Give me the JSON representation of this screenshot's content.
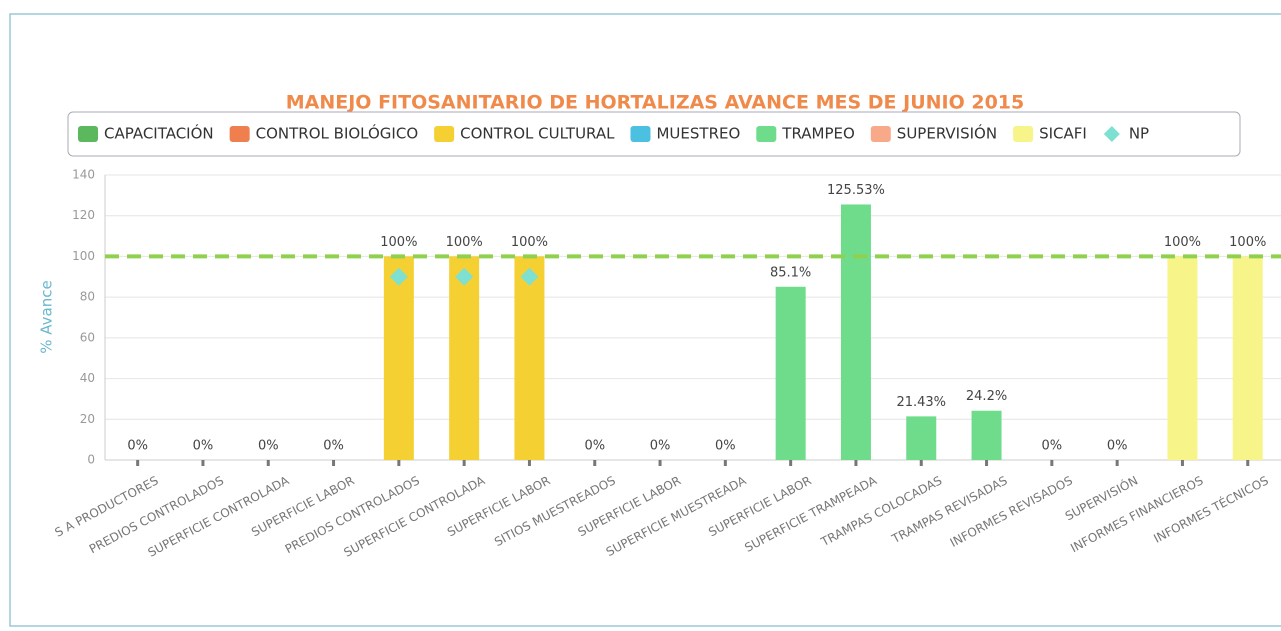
{
  "chart_data": {
    "type": "bar",
    "title": "MANEJO FITOSANITARIO DE HORTALIZAS AVANCE MES DE JUNIO 2015",
    "ylabel": "% Avance",
    "categories": [
      "S A PRODUCTORES",
      "PREDIOS CONTROLADOS",
      "SUPERFICIE CONTROLADA",
      "SUPERFICIE LABOR",
      "PREDIOS CONTROLADOS",
      "SUPERFICIE CONTROLADA",
      "SUPERFICIE LABOR",
      "SITIOS MUESTREADOS",
      "SUPERFICIE LABOR",
      "SUPERFICIE MUESTREADA",
      "SUPERFICIE LABOR",
      "SUPERFICIE TRAMPEADA",
      "TRAMPAS COLOCADAS",
      "TRAMPAS REVISADAS",
      "INFORMES REVISADOS",
      "SUPERVISIÓN",
      "INFORMES FINANCIEROS",
      "INFORMES TÉCNICOS"
    ],
    "series": [
      {
        "name": "CAPACITACIÓN",
        "color": "#5cb85c",
        "values": [
          0,
          null,
          null,
          null,
          null,
          null,
          null,
          null,
          null,
          null,
          null,
          null,
          null,
          null,
          null,
          null,
          null,
          null
        ],
        "value_labels": [
          "0%",
          null,
          null,
          null,
          null,
          null,
          null,
          null,
          null,
          null,
          null,
          null,
          null,
          null,
          null,
          null,
          null,
          null
        ]
      },
      {
        "name": "CONTROL BIOLÓGICO",
        "color": "#f07f50",
        "values": [
          null,
          0,
          0,
          0,
          null,
          null,
          null,
          null,
          null,
          null,
          null,
          null,
          null,
          null,
          null,
          null,
          null,
          null
        ],
        "value_labels": [
          null,
          "0%",
          "0%",
          "0%",
          null,
          null,
          null,
          null,
          null,
          null,
          null,
          null,
          null,
          null,
          null,
          null,
          null,
          null
        ]
      },
      {
        "name": "CONTROL CULTURAL",
        "color": "#f5d033",
        "values": [
          null,
          null,
          null,
          null,
          100,
          100,
          100,
          null,
          null,
          null,
          null,
          null,
          null,
          null,
          null,
          null,
          null,
          null
        ],
        "value_labels": [
          null,
          null,
          null,
          null,
          "100%",
          "100%",
          "100%",
          null,
          null,
          null,
          null,
          null,
          null,
          null,
          null,
          null,
          null,
          null
        ]
      },
      {
        "name": "MUESTREO",
        "color": "#4bc0e0",
        "values": [
          null,
          null,
          null,
          null,
          null,
          null,
          null,
          0,
          0,
          0,
          null,
          null,
          null,
          null,
          null,
          null,
          null,
          null
        ],
        "value_labels": [
          null,
          null,
          null,
          null,
          null,
          null,
          null,
          "0%",
          "0%",
          "0%",
          null,
          null,
          null,
          null,
          null,
          null,
          null,
          null
        ]
      },
      {
        "name": "TRAMPEO",
        "color": "#6fdc8c",
        "values": [
          null,
          null,
          null,
          null,
          null,
          null,
          null,
          null,
          null,
          null,
          85.1,
          125.53,
          21.43,
          24.2,
          null,
          null,
          null,
          null
        ],
        "value_labels": [
          null,
          null,
          null,
          null,
          null,
          null,
          null,
          null,
          null,
          null,
          "85.1%",
          "125.53%",
          "21.43%",
          "24.2%",
          null,
          null,
          null,
          null
        ]
      },
      {
        "name": "SUPERVISIÓN",
        "color": "#f7a98a",
        "values": [
          null,
          null,
          null,
          null,
          null,
          null,
          null,
          null,
          null,
          null,
          null,
          null,
          null,
          null,
          0,
          0,
          null,
          null
        ],
        "value_labels": [
          null,
          null,
          null,
          null,
          null,
          null,
          null,
          null,
          null,
          null,
          null,
          null,
          null,
          null,
          "0%",
          "0%",
          null,
          null
        ]
      },
      {
        "name": "SICAFI",
        "color": "#f7f58a",
        "values": [
          null,
          null,
          null,
          null,
          null,
          null,
          null,
          null,
          null,
          null,
          null,
          null,
          null,
          null,
          null,
          null,
          100,
          100
        ],
        "value_labels": [
          null,
          null,
          null,
          null,
          null,
          null,
          null,
          null,
          null,
          null,
          null,
          null,
          null,
          null,
          null,
          null,
          "100%",
          "100%"
        ]
      },
      {
        "name": "NP",
        "color": "#7ee0d0",
        "type": "scatter",
        "values": [
          null,
          null,
          null,
          null,
          90,
          90,
          90,
          null,
          null,
          null,
          null,
          null,
          null,
          null,
          null,
          null,
          null,
          null
        ]
      }
    ],
    "reference_line": {
      "value": 100,
      "color": "#8fd14f"
    },
    "ylim": [
      0,
      140
    ],
    "yticks": [
      0,
      20,
      40,
      60,
      80,
      100,
      120,
      140
    ],
    "grid": true
  }
}
